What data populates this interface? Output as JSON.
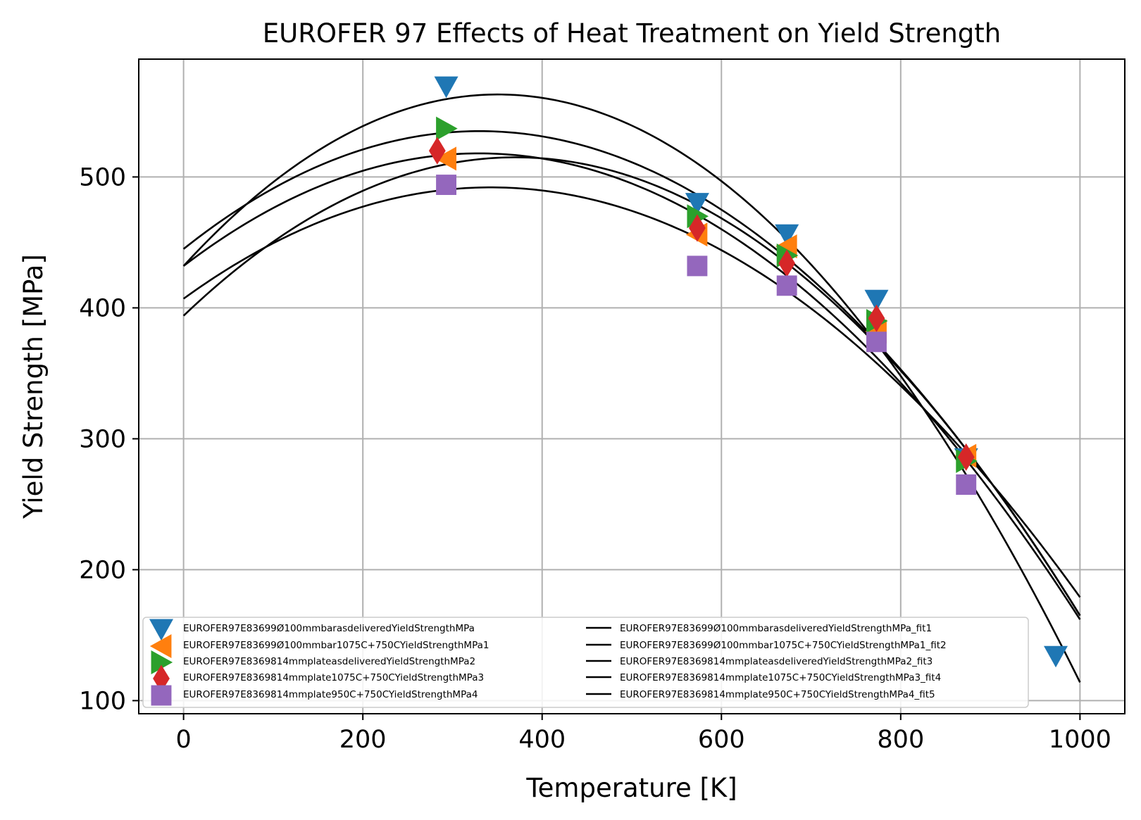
{
  "chart_data": {
    "type": "scatter",
    "title": "EUROFER 97 Effects of Heat Treatment on Yield Strength",
    "xlabel": "Temperature [K]",
    "ylabel": "Yield Strength [MPa]",
    "xlim": [
      -50,
      1050
    ],
    "ylim": [
      90,
      590
    ],
    "xticks": [
      0,
      200,
      400,
      600,
      800,
      1000
    ],
    "yticks": [
      100,
      200,
      300,
      400,
      500
    ],
    "grid": true,
    "legend_position": "lower-left",
    "series": [
      {
        "name": "EUROFER97E83699Ø100mmbarasdeliveredYieldStrengthMPa",
        "marker": "triangle-down",
        "color": "#1f77b4",
        "x": [
          293,
          573,
          673,
          773,
          873,
          973
        ],
        "y": [
          569,
          480,
          456,
          406,
          285,
          134
        ]
      },
      {
        "name": "EUROFER97E83699Ø100mmbar1075C+750CYieldStrengthMPa1",
        "marker": "triangle-left",
        "color": "#ff7f0e",
        "x": [
          293,
          573,
          673,
          773,
          873
        ],
        "y": [
          514,
          456,
          447,
          382,
          287
        ]
      },
      {
        "name": "EUROFER97E8369814mmplateasdeliveredYieldStrengthMPa2",
        "marker": "triangle-right",
        "color": "#2ca02c",
        "x": [
          293,
          573,
          673,
          773,
          873
        ],
        "y": [
          537,
          470,
          440,
          390,
          283
        ]
      },
      {
        "name": "EUROFER97E8369814mmplate1075C+750CYieldStrengthMPa3",
        "marker": "diamond",
        "color": "#d62728",
        "x": [
          283,
          573,
          673,
          773,
          873
        ],
        "y": [
          520,
          461,
          434,
          392,
          286
        ]
      },
      {
        "name": "EUROFER97E8369814mmplate950C+750CYieldStrengthMPa4",
        "marker": "square",
        "color": "#9467bd",
        "x": [
          293,
          573,
          673,
          773,
          873
        ],
        "y": [
          494,
          432,
          417,
          374,
          265
        ]
      }
    ],
    "fits": [
      {
        "name": "EUROFER97E83699Ø100mmbarasdeliveredYieldStrengthMPa_fit1",
        "color": "#000000",
        "type": "quadratic",
        "x": [
          0,
          350,
          1000
        ],
        "y": [
          432,
          563,
          114
        ]
      },
      {
        "name": "EUROFER97E83699Ø100mmbar1075C+750CYieldStrengthMPa1_fit2",
        "color": "#000000",
        "type": "quadratic",
        "x": [
          0,
          330,
          1000
        ],
        "y": [
          445,
          535,
          165
        ]
      },
      {
        "name": "EUROFER97E8369814mmplateasdeliveredYieldStrengthMPa2_fit3",
        "color": "#000000",
        "type": "quadratic",
        "x": [
          0,
          330,
          1000
        ],
        "y": [
          432,
          518,
          162
        ]
      },
      {
        "name": "EUROFER97E8369814mmplate1075C+750CYieldStrengthMPa3_fit4",
        "color": "#000000",
        "type": "quadratic",
        "x": [
          0,
          370,
          1000
        ],
        "y": [
          394,
          515,
          165
        ]
      },
      {
        "name": "EUROFER97E8369814mmplate950C+750CYieldStrengthMPa4_fit5",
        "color": "#000000",
        "type": "quadratic",
        "x": [
          0,
          335,
          1000
        ],
        "y": [
          407,
          492,
          179
        ]
      }
    ]
  }
}
